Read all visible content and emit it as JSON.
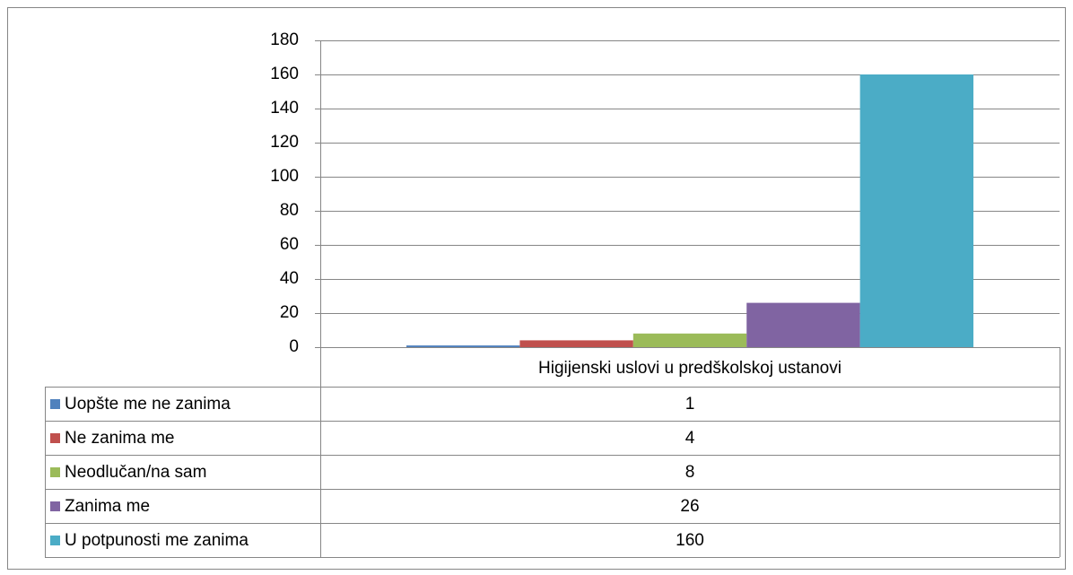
{
  "chart_data": {
    "type": "bar",
    "categories": [
      "Higijenski uslovi u predškolskoj ustanovi"
    ],
    "series": [
      {
        "name": "Uopšte me ne zanima",
        "color": "#4f81bd",
        "values": [
          1
        ]
      },
      {
        "name": "Ne zanima me",
        "color": "#c0504d",
        "values": [
          4
        ]
      },
      {
        "name": "Neodlučan/na sam",
        "color": "#9bbb59",
        "values": [
          8
        ]
      },
      {
        "name": "Zanima me",
        "color": "#8064a2",
        "values": [
          26
        ]
      },
      {
        "name": "U potpunosti me zanima",
        "color": "#4bacc6",
        "values": [
          160
        ]
      }
    ],
    "ylim": [
      0,
      180
    ],
    "yticks": [
      0,
      20,
      40,
      60,
      80,
      100,
      120,
      140,
      160,
      180
    ],
    "grid": true
  }
}
